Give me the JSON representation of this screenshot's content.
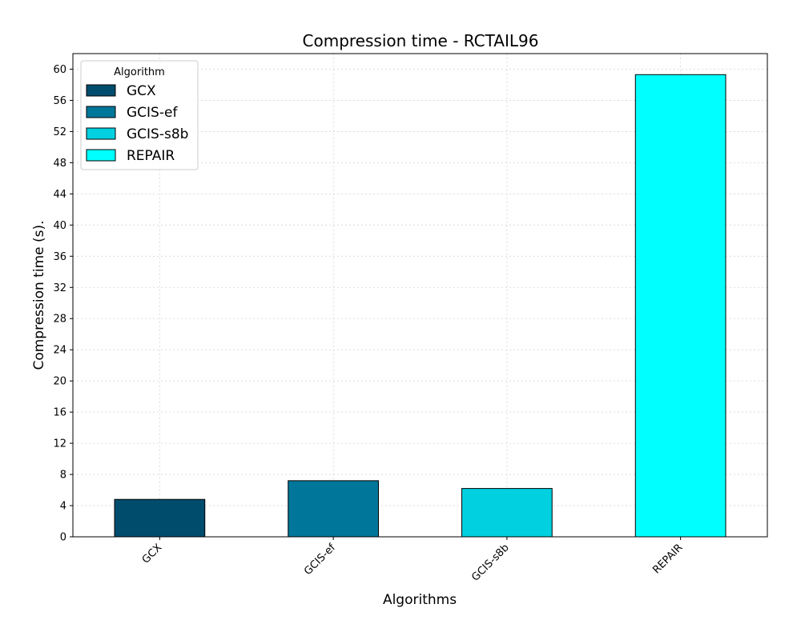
{
  "chart_data": {
    "type": "bar",
    "title": "Compression time -  RCTAIL96",
    "xlabel": "Algorithms",
    "ylabel": "Compression time (s).",
    "categories": [
      "GCX",
      "GCIS-ef",
      "GCIS-s8b",
      "REPAIR"
    ],
    "values": [
      4.8,
      7.2,
      6.2,
      59.3
    ],
    "colors": [
      "#004c6d",
      "#00769a",
      "#00d0e0",
      "#00ffff"
    ],
    "ylim": [
      0,
      62
    ],
    "yticks": [
      0,
      4,
      8,
      12,
      16,
      20,
      24,
      28,
      32,
      36,
      40,
      44,
      48,
      52,
      56,
      60
    ],
    "grid": true,
    "legend": {
      "title": "Algorithm",
      "placement": "top-left",
      "entries": [
        "GCX",
        "GCIS-ef",
        "GCIS-s8b",
        "REPAIR"
      ]
    }
  }
}
